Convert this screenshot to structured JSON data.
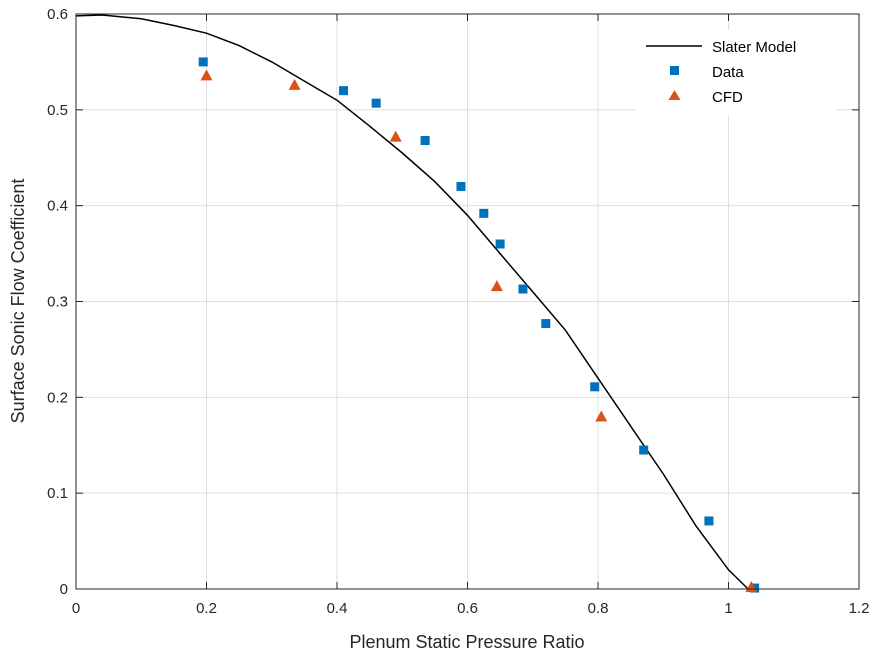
{
  "chart_data": {
    "type": "scatter",
    "xlabel": "Plenum Static Pressure Ratio",
    "ylabel": "Surface Sonic Flow Coefficient",
    "xlim": [
      0,
      1.2
    ],
    "ylim": [
      0,
      0.6
    ],
    "xticks": [
      "0",
      "0.2",
      "0.4",
      "0.6",
      "0.8",
      "1",
      "1.2"
    ],
    "yticks": [
      "0",
      "0.1",
      "0.2",
      "0.3",
      "0.4",
      "0.5",
      "0.6"
    ],
    "grid": true,
    "legend_position": "top-right",
    "series": [
      {
        "name": "Slater Model",
        "kind": "line",
        "color": "#000000",
        "x": [
          0,
          0.04,
          0.1,
          0.15,
          0.2,
          0.25,
          0.3,
          0.35,
          0.4,
          0.45,
          0.5,
          0.55,
          0.6,
          0.65,
          0.7,
          0.75,
          0.8,
          0.85,
          0.9,
          0.95,
          1.0,
          1.03
        ],
        "y": [
          0.598,
          0.599,
          0.595,
          0.588,
          0.58,
          0.567,
          0.55,
          0.53,
          0.51,
          0.483,
          0.455,
          0.425,
          0.39,
          0.35,
          0.31,
          0.27,
          0.22,
          0.17,
          0.12,
          0.066,
          0.02,
          0.0
        ]
      },
      {
        "name": "Data",
        "kind": "marker",
        "marker": "square",
        "color": "#0072BD",
        "x": [
          0.195,
          0.41,
          0.46,
          0.535,
          0.59,
          0.625,
          0.65,
          0.685,
          0.72,
          0.795,
          0.87,
          0.97,
          1.04
        ],
        "y": [
          0.55,
          0.52,
          0.507,
          0.468,
          0.42,
          0.392,
          0.36,
          0.313,
          0.277,
          0.211,
          0.145,
          0.071,
          0.001
        ]
      },
      {
        "name": "CFD",
        "kind": "marker",
        "marker": "triangle",
        "color": "#D95319",
        "x": [
          0.2,
          0.335,
          0.49,
          0.645,
          0.805,
          1.035
        ],
        "y": [
          0.536,
          0.526,
          0.472,
          0.316,
          0.18,
          0.002
        ]
      }
    ]
  }
}
